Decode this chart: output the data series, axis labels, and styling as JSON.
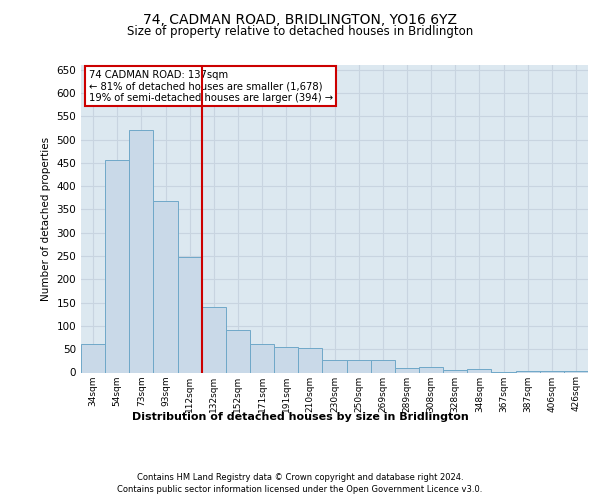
{
  "title": "74, CADMAN ROAD, BRIDLINGTON, YO16 6YZ",
  "subtitle": "Size of property relative to detached houses in Bridlington",
  "xlabel": "Distribution of detached houses by size in Bridlington",
  "ylabel": "Number of detached properties",
  "footnote1": "Contains HM Land Registry data © Crown copyright and database right 2024.",
  "footnote2": "Contains public sector information licensed under the Open Government Licence v3.0.",
  "annotation_line1": "74 CADMAN ROAD: 137sqm",
  "annotation_line2": "← 81% of detached houses are smaller (1,678)",
  "annotation_line3": "19% of semi-detached houses are larger (394) →",
  "bar_color": "#c9d9e8",
  "bar_edgecolor": "#6fa8c8",
  "grid_color": "#c8d4e0",
  "background_color": "#dce8f0",
  "vline_color": "#cc0000",
  "vline_x_index": 5,
  "categories": [
    "34sqm",
    "54sqm",
    "73sqm",
    "93sqm",
    "112sqm",
    "132sqm",
    "152sqm",
    "171sqm",
    "191sqm",
    "210sqm",
    "230sqm",
    "250sqm",
    "269sqm",
    "289sqm",
    "308sqm",
    "328sqm",
    "348sqm",
    "367sqm",
    "387sqm",
    "406sqm",
    "426sqm"
  ],
  "values": [
    62,
    456,
    521,
    368,
    248,
    140,
    91,
    61,
    55,
    53,
    27,
    26,
    26,
    10,
    11,
    6,
    8,
    2,
    4,
    3,
    3
  ],
  "ylim": [
    0,
    660
  ],
  "yticks": [
    0,
    50,
    100,
    150,
    200,
    250,
    300,
    350,
    400,
    450,
    500,
    550,
    600,
    650
  ]
}
